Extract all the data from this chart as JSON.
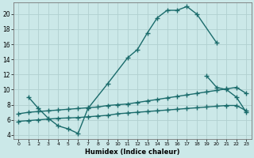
{
  "bg_color": "#cbe8e8",
  "grid_color": "#b0d0d0",
  "line_color": "#1a6b6b",
  "line_width": 1.0,
  "marker": "+",
  "marker_size": 4,
  "marker_ew": 1.0,
  "xlabel": "Humidex (Indice chaleur)",
  "xlim": [
    -0.5,
    23.5
  ],
  "ylim": [
    3.5,
    21.5
  ],
  "xticks": [
    0,
    1,
    2,
    3,
    4,
    5,
    6,
    7,
    8,
    9,
    10,
    11,
    12,
    13,
    14,
    15,
    16,
    17,
    18,
    19,
    20,
    21,
    22,
    23
  ],
  "yticks": [
    4,
    6,
    8,
    10,
    12,
    14,
    16,
    18,
    20
  ],
  "series1_x": [
    1,
    2,
    3,
    4,
    5,
    6,
    7,
    9,
    11,
    12,
    13,
    14,
    15,
    16,
    17,
    18,
    20
  ],
  "series1_y": [
    9.0,
    7.5,
    6.2,
    5.2,
    4.8,
    4.2,
    7.5,
    10.8,
    14.2,
    15.3,
    17.5,
    19.5,
    20.5,
    20.5,
    21.0,
    20.0,
    16.2
  ],
  "series2_x": [
    0,
    1,
    2,
    3,
    4,
    5,
    6,
    7,
    8,
    9,
    10,
    11,
    12,
    13,
    14,
    15,
    16,
    17,
    18,
    19,
    20,
    21,
    22,
    23
  ],
  "series2_y": [
    6.8,
    7.0,
    7.1,
    7.2,
    7.3,
    7.4,
    7.5,
    7.6,
    7.7,
    7.9,
    8.0,
    8.1,
    8.3,
    8.5,
    8.7,
    8.9,
    9.1,
    9.3,
    9.5,
    9.7,
    9.9,
    10.1,
    10.3,
    9.5
  ],
  "series3_x": [
    0,
    1,
    2,
    3,
    4,
    5,
    6,
    7,
    8,
    9,
    10,
    11,
    12,
    13,
    14,
    15,
    16,
    17,
    18,
    19,
    20,
    21,
    22,
    23
  ],
  "series3_y": [
    5.8,
    5.9,
    6.0,
    6.1,
    6.2,
    6.25,
    6.3,
    6.4,
    6.5,
    6.6,
    6.8,
    6.9,
    7.0,
    7.1,
    7.2,
    7.3,
    7.4,
    7.5,
    7.6,
    7.7,
    7.8,
    7.9,
    7.9,
    7.2
  ],
  "series4_x": [
    19,
    20,
    21,
    22,
    23
  ],
  "series4_y": [
    11.8,
    10.3,
    10.0,
    9.0,
    7.0
  ]
}
